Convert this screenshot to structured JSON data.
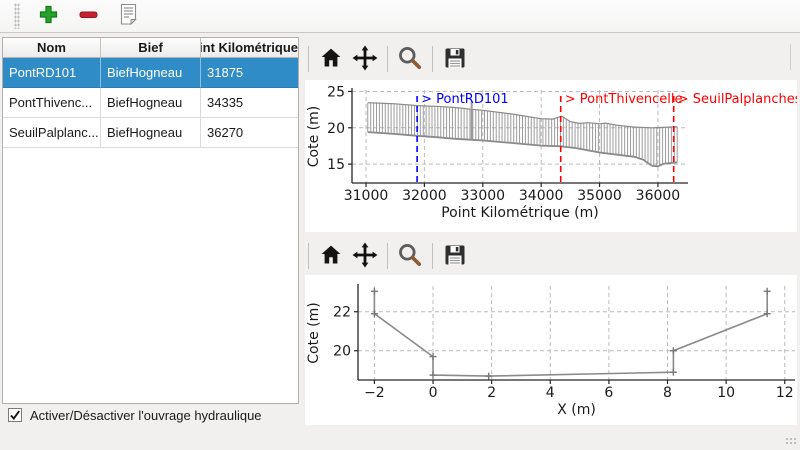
{
  "main_toolbar": {
    "buttons": [
      {
        "name": "add",
        "icon": "plus-icon"
      },
      {
        "name": "remove",
        "icon": "minus-icon"
      },
      {
        "name": "edit",
        "icon": "document-icon"
      }
    ]
  },
  "table": {
    "columns": [
      "Nom",
      "Bief",
      "Point Kilométrique"
    ],
    "rows": [
      {
        "nom": "PontRD101",
        "bief": "BiefHogneau",
        "pk": "31875",
        "selected": true
      },
      {
        "nom": "PontThivenc...",
        "bief": "BiefHogneau",
        "pk": "34335",
        "selected": false
      },
      {
        "nom": "SeuilPalplanc...",
        "bief": "BiefHogneau",
        "pk": "36270",
        "selected": false
      }
    ],
    "selection_color": "#308cc6"
  },
  "checkbox": {
    "label": "Activer/Désactiver l'ouvrage hydraulique",
    "checked": true
  },
  "nav_toolbar": {
    "icons": [
      "home",
      "pan",
      "zoom",
      "save"
    ]
  },
  "chart_data": [
    {
      "type": "area",
      "title": "",
      "xlabel": "Point Kilométrique (m)",
      "ylabel": "Cote (m)",
      "xlim": [
        30760,
        36515
      ],
      "ylim": [
        12.4,
        25.2
      ],
      "xticks": [
        31000,
        32000,
        33000,
        34000,
        35000,
        36000
      ],
      "yticks": [
        15,
        20,
        25
      ],
      "grid": true,
      "profile_color": "#9b9b9b",
      "outline_color": "#8a8a8a",
      "comb_step_m": 50,
      "series": [
        {
          "name": "top_envelope",
          "points": [
            [
              31030,
              23.45
            ],
            [
              31500,
              23.3
            ],
            [
              31875,
              23.05
            ],
            [
              32200,
              22.95
            ],
            [
              32500,
              22.8
            ],
            [
              32810,
              22.55
            ],
            [
              33000,
              22.4
            ],
            [
              33500,
              21.9
            ],
            [
              34000,
              21.25
            ],
            [
              34200,
              21.2
            ],
            [
              34350,
              21.6
            ],
            [
              34500,
              20.85
            ],
            [
              34650,
              20.6
            ],
            [
              34800,
              20.7
            ],
            [
              35000,
              20.55
            ],
            [
              35100,
              20.65
            ],
            [
              35300,
              20.35
            ],
            [
              35600,
              20.1
            ],
            [
              35900,
              20.0
            ],
            [
              36100,
              20.05
            ],
            [
              36330,
              20.15
            ]
          ]
        },
        {
          "name": "bottom_envelope",
          "points": [
            [
              31030,
              19.4
            ],
            [
              31500,
              19.15
            ],
            [
              31875,
              18.9
            ],
            [
              32200,
              18.7
            ],
            [
              32500,
              18.5
            ],
            [
              32810,
              18.35
            ],
            [
              33000,
              18.25
            ],
            [
              33500,
              17.9
            ],
            [
              34000,
              17.55
            ],
            [
              34335,
              17.45
            ],
            [
              34600,
              17.2
            ],
            [
              35000,
              16.6
            ],
            [
              35300,
              16.3
            ],
            [
              35600,
              16.0
            ],
            [
              35750,
              15.6
            ],
            [
              35900,
              14.75
            ],
            [
              36000,
              14.7
            ],
            [
              36100,
              15.05
            ],
            [
              36270,
              15.2
            ],
            [
              36330,
              15.25
            ]
          ]
        }
      ],
      "spike": {
        "x": 32810,
        "y_bottom": 18.4,
        "y_top": 23.6
      },
      "annotations": [
        {
          "label": "> PontRD101",
          "x": 31875,
          "color": "#0000ff"
        },
        {
          "label": "> PontThivencelle",
          "x": 34335,
          "color": "#ff0000"
        },
        {
          "label": "> SeuilPalplanches",
          "x": 36270,
          "color": "#ff0000"
        }
      ]
    },
    {
      "type": "line",
      "title": "",
      "xlabel": "X (m)",
      "ylabel": "Cote (m)",
      "xlim": [
        -2.56,
        12.35
      ],
      "ylim": [
        18.5,
        23.32
      ],
      "xticks": [
        -2,
        0,
        2,
        4,
        6,
        8,
        10,
        12
      ],
      "yticks": [
        20,
        22
      ],
      "grid": true,
      "marker": "+",
      "line_color": "#8a8a8a",
      "points": [
        [
          -2,
          23.05
        ],
        [
          -2,
          21.9
        ],
        [
          0,
          19.7
        ],
        [
          0,
          18.75
        ],
        [
          1.9,
          18.7
        ],
        [
          8.2,
          18.9
        ],
        [
          8.2,
          20.0
        ],
        [
          11.4,
          21.9
        ],
        [
          11.4,
          23.05
        ]
      ]
    }
  ]
}
